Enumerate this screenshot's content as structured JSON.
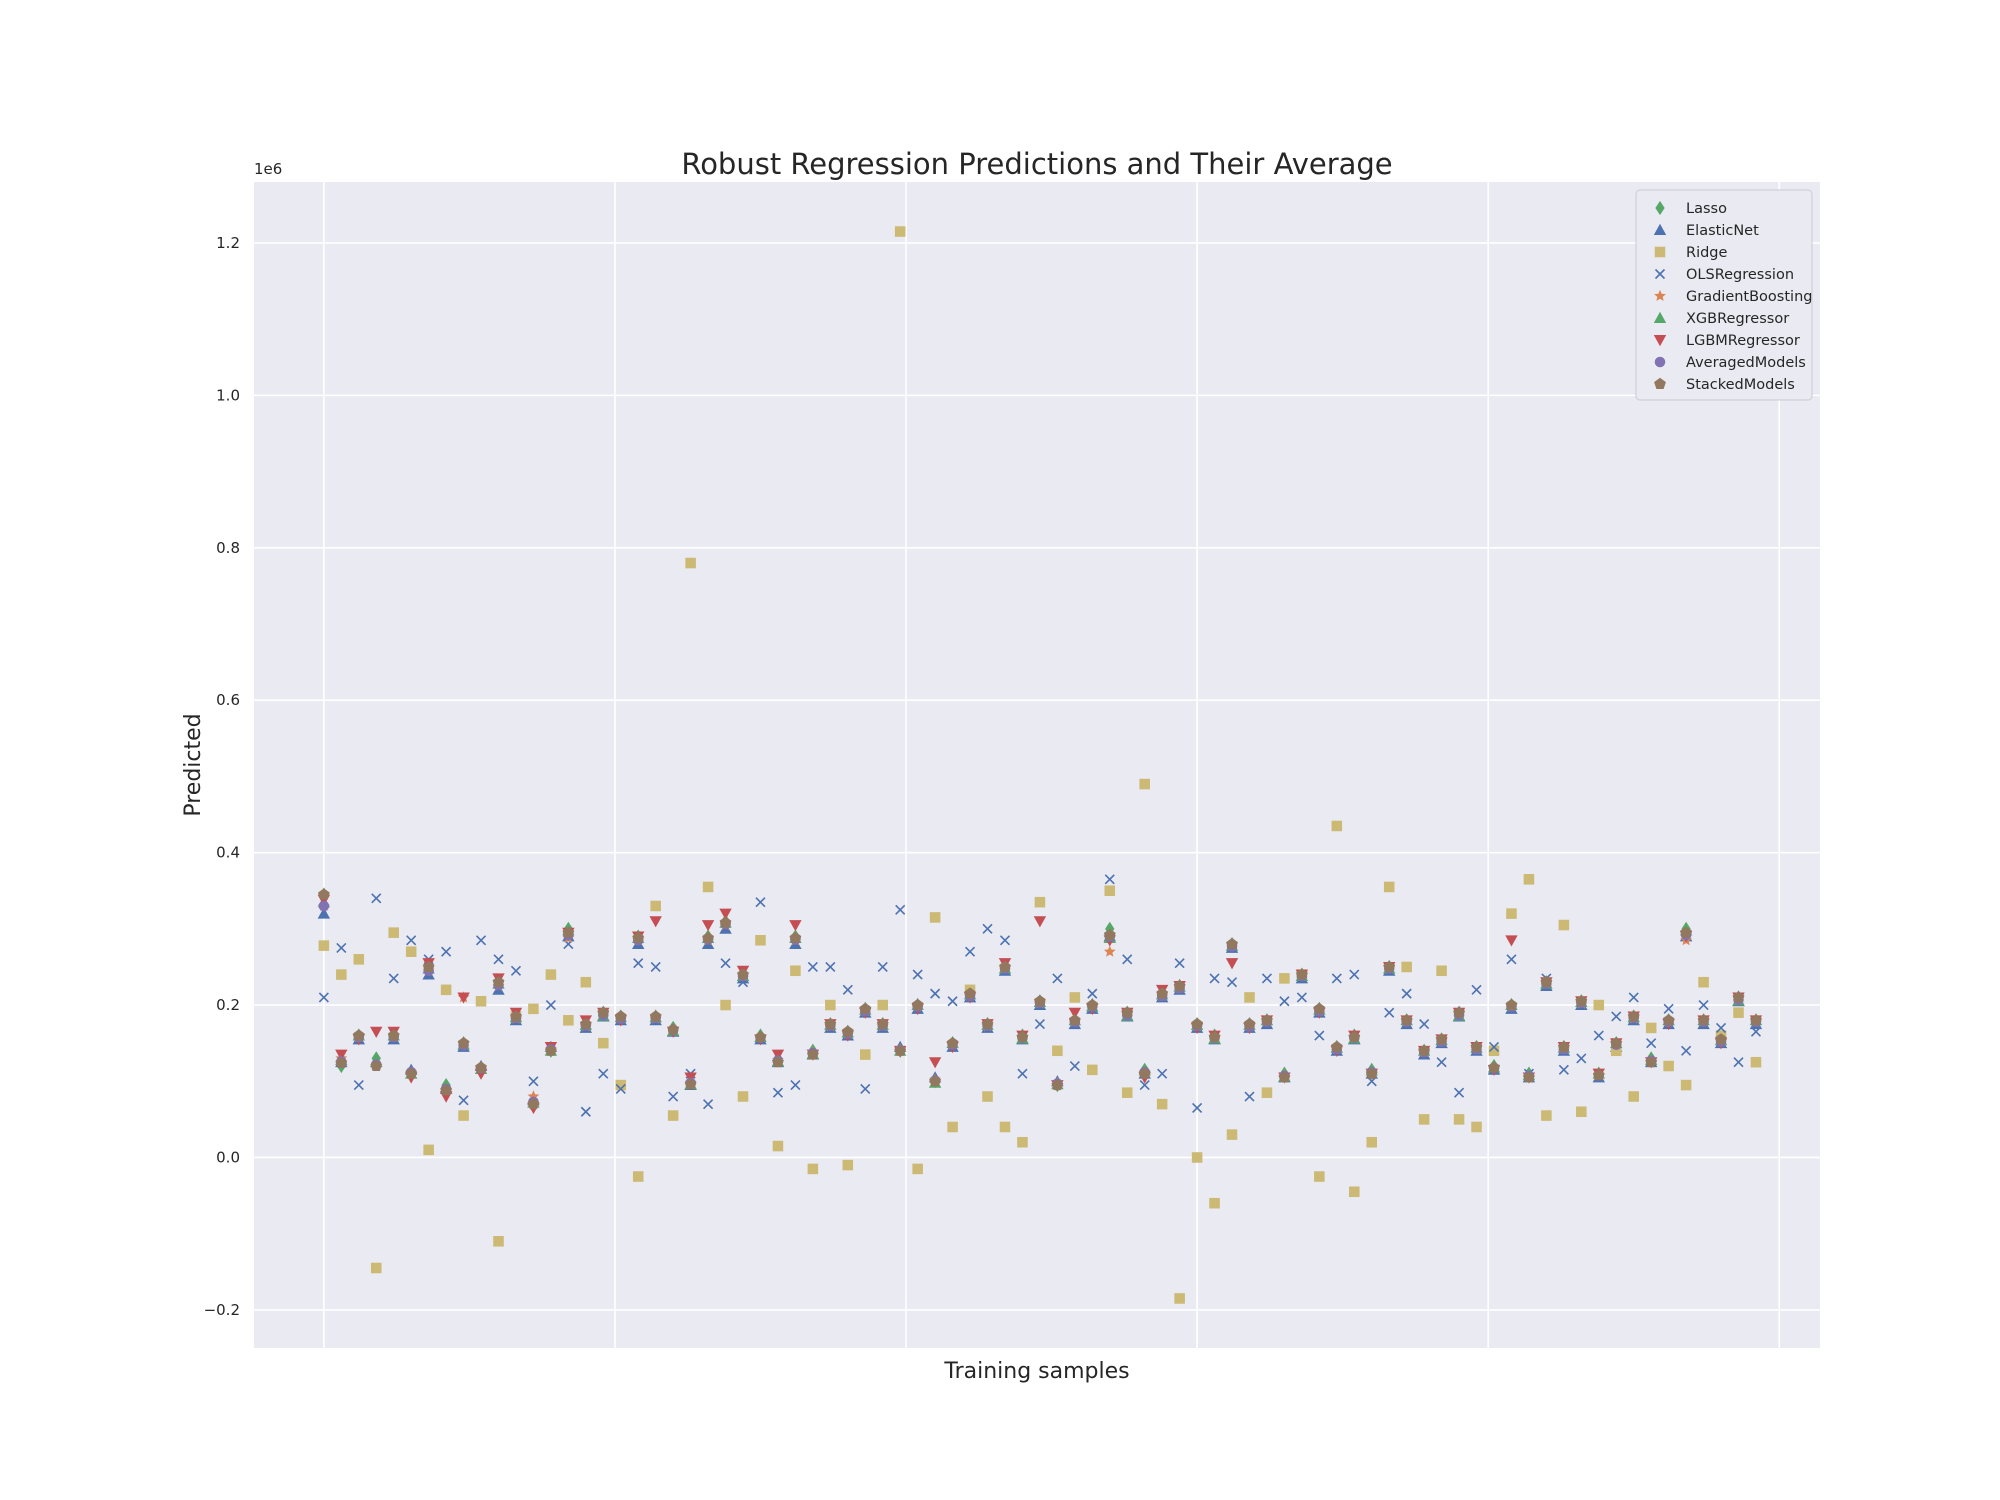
{
  "chart_data": {
    "type": "scatter",
    "title": "Robust Regression Predictions and Their Average",
    "xlabel": "Training samples",
    "ylabel": "Predicted",
    "y_offset_label": "1e6",
    "x_tick_labels_shown": false,
    "xlim": [
      -24,
      514
    ],
    "ylim": [
      -0.25,
      1.28
    ],
    "y_ticks": [
      -0.2,
      0.0,
      0.2,
      0.4,
      0.6,
      0.8,
      1.0,
      1.2
    ],
    "y_tick_labels": [
      "−0.2",
      "0.0",
      "0.2",
      "0.4",
      "0.6",
      "0.8",
      "1.0",
      "1.2"
    ],
    "x_grid": [
      0,
      100,
      200,
      300,
      400,
      500
    ],
    "grid": true,
    "legend_position": "top-right",
    "value_units": "millions of predicted price (1e6)",
    "x": [
      0,
      6,
      12,
      18,
      24,
      30,
      36,
      42,
      48,
      54,
      60,
      66,
      72,
      78,
      84,
      90,
      96,
      102,
      108,
      114,
      120,
      126,
      132,
      138,
      144,
      150,
      156,
      162,
      168,
      174,
      180,
      186,
      192,
      198,
      204,
      210,
      216,
      222,
      228,
      234,
      240,
      246,
      252,
      258,
      264,
      270,
      276,
      282,
      288,
      294,
      300,
      306,
      312,
      318,
      324,
      330,
      336,
      342,
      348,
      354,
      360,
      366,
      372,
      378,
      384,
      390,
      396,
      402,
      408,
      414,
      420,
      426,
      432,
      438,
      444,
      450,
      456,
      462,
      468,
      474,
      480,
      486,
      492
    ],
    "series": [
      {
        "name": "Lasso",
        "color": "#55a868",
        "marker": "diamond",
        "values": [
          0.345,
          0.12,
          0.16,
          0.13,
          0.162,
          0.11,
          0.25,
          0.095,
          0.15,
          0.115,
          0.23,
          0.185,
          0.07,
          0.14,
          0.3,
          0.175,
          0.19,
          0.185,
          0.29,
          0.185,
          0.17,
          0.1,
          0.29,
          0.31,
          0.24,
          0.16,
          0.13,
          0.29,
          0.14,
          0.175,
          0.165,
          0.195,
          0.175,
          0.14,
          0.2,
          0.1,
          0.15,
          0.215,
          0.175,
          0.25,
          0.16,
          0.205,
          0.095,
          0.18,
          0.2,
          0.3,
          0.19,
          0.115,
          0.215,
          0.225,
          0.175,
          0.16,
          0.28,
          0.175,
          0.18,
          0.11,
          0.24,
          0.195,
          0.145,
          0.16,
          0.115,
          0.25,
          0.18,
          0.14,
          0.155,
          0.19,
          0.145,
          0.12,
          0.2,
          0.11,
          0.23,
          0.145,
          0.205,
          0.11,
          0.15,
          0.185,
          0.13,
          0.18,
          0.3,
          0.18,
          0.155,
          0.21,
          0.18
        ]
      },
      {
        "name": "ElasticNet",
        "color": "#4c72b0",
        "marker": "triangle-up",
        "values": [
          0.32,
          0.125,
          0.155,
          0.125,
          0.155,
          0.115,
          0.24,
          0.09,
          0.145,
          0.12,
          0.22,
          0.18,
          0.075,
          0.145,
          0.29,
          0.17,
          0.185,
          0.18,
          0.28,
          0.18,
          0.165,
          0.095,
          0.28,
          0.3,
          0.235,
          0.155,
          0.125,
          0.28,
          0.135,
          0.17,
          0.16,
          0.19,
          0.17,
          0.145,
          0.195,
          0.105,
          0.145,
          0.21,
          0.17,
          0.245,
          0.155,
          0.2,
          0.1,
          0.175,
          0.195,
          0.29,
          0.185,
          0.11,
          0.21,
          0.22,
          0.17,
          0.155,
          0.275,
          0.17,
          0.175,
          0.105,
          0.235,
          0.19,
          0.14,
          0.155,
          0.11,
          0.245,
          0.175,
          0.135,
          0.15,
          0.185,
          0.14,
          0.115,
          0.195,
          0.105,
          0.225,
          0.14,
          0.2,
          0.105,
          0.145,
          0.18,
          0.125,
          0.175,
          0.29,
          0.175,
          0.15,
          0.205,
          0.175
        ]
      },
      {
        "name": "Ridge",
        "color": "#ccb974",
        "marker": "square",
        "values": [
          0.278,
          0.24,
          0.26,
          -0.145,
          0.295,
          0.27,
          0.01,
          0.22,
          0.055,
          0.205,
          -0.11,
          0.185,
          0.195,
          0.24,
          0.18,
          0.23,
          0.15,
          0.095,
          -0.025,
          0.33,
          0.055,
          0.78,
          0.355,
          0.2,
          0.08,
          0.285,
          0.015,
          0.245,
          -0.015,
          0.2,
          -0.01,
          0.135,
          0.2,
          1.215,
          -0.015,
          0.315,
          0.04,
          0.22,
          0.08,
          0.04,
          0.02,
          0.335,
          0.14,
          0.21,
          0.115,
          0.35,
          0.085,
          0.49,
          0.07,
          -0.185,
          0.0,
          -0.06,
          0.03,
          0.21,
          0.085,
          0.235,
          0.24,
          -0.025,
          0.435,
          -0.045,
          0.02,
          0.355,
          0.25,
          0.05,
          0.245,
          0.05,
          0.04,
          0.14,
          0.32,
          0.365,
          0.055,
          0.305,
          0.06,
          0.2,
          0.14,
          0.08,
          0.17,
          0.12,
          0.095,
          0.23,
          0.16,
          0.19,
          0.125
        ]
      },
      {
        "name": "OLSRegression",
        "color": "#4c72b0",
        "marker": "x",
        "values": [
          0.21,
          0.275,
          0.095,
          0.34,
          0.235,
          0.285,
          0.26,
          0.27,
          0.075,
          0.285,
          0.26,
          0.245,
          0.1,
          0.2,
          0.28,
          0.06,
          0.11,
          0.09,
          0.255,
          0.25,
          0.08,
          0.11,
          0.07,
          0.255,
          0.23,
          0.335,
          0.085,
          0.095,
          0.25,
          0.25,
          0.22,
          0.09,
          0.25,
          0.325,
          0.24,
          0.215,
          0.205,
          0.27,
          0.3,
          0.285,
          0.11,
          0.175,
          0.235,
          0.12,
          0.215,
          0.365,
          0.26,
          0.095,
          0.11,
          0.255,
          0.065,
          0.235,
          0.23,
          0.08,
          0.235,
          0.205,
          0.21,
          0.16,
          0.235,
          0.24,
          0.1,
          0.19,
          0.215,
          0.175,
          0.125,
          0.085,
          0.22,
          0.145,
          0.26,
          0.11,
          0.235,
          0.115,
          0.13,
          0.16,
          0.185,
          0.21,
          0.15,
          0.195,
          0.14,
          0.2,
          0.17,
          0.125,
          0.165
        ]
      },
      {
        "name": "GradientBoosting",
        "color": "#dd8452",
        "marker": "star",
        "values": [
          0.33,
          0.13,
          0.158,
          0.12,
          0.158,
          0.112,
          0.245,
          0.088,
          0.21,
          0.118,
          0.225,
          0.182,
          0.08,
          0.142,
          0.288,
          0.172,
          0.188,
          0.182,
          0.285,
          0.182,
          0.168,
          0.098,
          0.285,
          0.305,
          0.24,
          0.158,
          0.128,
          0.285,
          0.138,
          0.172,
          0.162,
          0.192,
          0.172,
          0.142,
          0.198,
          0.102,
          0.148,
          0.212,
          0.172,
          0.248,
          0.158,
          0.202,
          0.098,
          0.178,
          0.198,
          0.27,
          0.188,
          0.112,
          0.212,
          0.222,
          0.172,
          0.158,
          0.278,
          0.172,
          0.178,
          0.108,
          0.238,
          0.192,
          0.142,
          0.158,
          0.112,
          0.248,
          0.178,
          0.138,
          0.152,
          0.188,
          0.142,
          0.118,
          0.198,
          0.108,
          0.228,
          0.142,
          0.202,
          0.108,
          0.148,
          0.182,
          0.128,
          0.178,
          0.285,
          0.178,
          0.152,
          0.208,
          0.178
        ]
      },
      {
        "name": "XGBRegressor",
        "color": "#55a868",
        "marker": "triangle-up",
        "values": [
          0.335,
          0.128,
          0.16,
          0.125,
          0.16,
          0.11,
          0.248,
          0.092,
          0.148,
          0.116,
          0.228,
          0.184,
          0.072,
          0.14,
          0.298,
          0.174,
          0.186,
          0.184,
          0.288,
          0.184,
          0.166,
          0.096,
          0.288,
          0.308,
          0.238,
          0.158,
          0.126,
          0.288,
          0.136,
          0.174,
          0.164,
          0.194,
          0.174,
          0.14,
          0.2,
          0.098,
          0.15,
          0.214,
          0.174,
          0.248,
          0.156,
          0.204,
          0.096,
          0.18,
          0.198,
          0.288,
          0.186,
          0.114,
          0.214,
          0.224,
          0.174,
          0.156,
          0.278,
          0.174,
          0.18,
          0.106,
          0.238,
          0.194,
          0.144,
          0.156,
          0.114,
          0.248,
          0.18,
          0.14,
          0.154,
          0.186,
          0.144,
          0.118,
          0.2,
          0.108,
          0.228,
          0.144,
          0.204,
          0.11,
          0.15,
          0.184,
          0.128,
          0.18,
          0.298,
          0.18,
          0.154,
          0.206,
          0.18
        ]
      },
      {
        "name": "LGBMRegressor",
        "color": "#c44e52",
        "marker": "triangle-down",
        "values": [
          0.338,
          0.135,
          0.155,
          0.165,
          0.165,
          0.105,
          0.255,
          0.08,
          0.21,
          0.11,
          0.235,
          0.19,
          0.065,
          0.145,
          0.295,
          0.18,
          0.19,
          0.18,
          0.29,
          0.31,
          0.165,
          0.105,
          0.305,
          0.32,
          0.245,
          0.155,
          0.135,
          0.305,
          0.135,
          0.175,
          0.16,
          0.19,
          0.175,
          0.14,
          0.195,
          0.125,
          0.145,
          0.21,
          0.175,
          0.255,
          0.16,
          0.31,
          0.095,
          0.19,
          0.195,
          0.285,
          0.19,
          0.105,
          0.22,
          0.225,
          0.17,
          0.16,
          0.255,
          0.17,
          0.18,
          0.105,
          0.24,
          0.19,
          0.14,
          0.16,
          0.11,
          0.25,
          0.18,
          0.14,
          0.155,
          0.19,
          0.145,
          0.115,
          0.285,
          0.105,
          0.23,
          0.145,
          0.205,
          0.11,
          0.15,
          0.185,
          0.125,
          0.175,
          0.29,
          0.18,
          0.15,
          0.21,
          0.18
        ]
      },
      {
        "name": "AveragedModels",
        "color": "#8172b3",
        "marker": "circle",
        "values": [
          0.33,
          0.126,
          0.158,
          0.122,
          0.158,
          0.112,
          0.245,
          0.09,
          0.147,
          0.117,
          0.226,
          0.183,
          0.073,
          0.142,
          0.292,
          0.173,
          0.187,
          0.182,
          0.285,
          0.183,
          0.167,
          0.098,
          0.286,
          0.306,
          0.238,
          0.157,
          0.127,
          0.286,
          0.137,
          0.173,
          0.163,
          0.192,
          0.173,
          0.141,
          0.198,
          0.101,
          0.148,
          0.212,
          0.173,
          0.248,
          0.157,
          0.203,
          0.097,
          0.178,
          0.198,
          0.29,
          0.187,
          0.112,
          0.212,
          0.222,
          0.173,
          0.157,
          0.277,
          0.172,
          0.178,
          0.107,
          0.238,
          0.192,
          0.142,
          0.157,
          0.112,
          0.248,
          0.178,
          0.138,
          0.152,
          0.187,
          0.142,
          0.117,
          0.198,
          0.107,
          0.228,
          0.142,
          0.203,
          0.108,
          0.148,
          0.183,
          0.127,
          0.178,
          0.292,
          0.178,
          0.152,
          0.207,
          0.178
        ]
      },
      {
        "name": "StackedModels",
        "color": "#937860",
        "marker": "pentagon",
        "values": [
          0.345,
          0.124,
          0.16,
          0.12,
          0.16,
          0.11,
          0.25,
          0.088,
          0.15,
          0.118,
          0.23,
          0.185,
          0.07,
          0.14,
          0.295,
          0.175,
          0.19,
          0.185,
          0.288,
          0.185,
          0.168,
          0.096,
          0.288,
          0.308,
          0.24,
          0.158,
          0.125,
          0.288,
          0.135,
          0.175,
          0.165,
          0.195,
          0.175,
          0.14,
          0.2,
          0.1,
          0.15,
          0.215,
          0.175,
          0.25,
          0.158,
          0.205,
          0.095,
          0.18,
          0.2,
          0.292,
          0.19,
          0.11,
          0.215,
          0.225,
          0.175,
          0.158,
          0.28,
          0.175,
          0.18,
          0.105,
          0.24,
          0.195,
          0.145,
          0.158,
          0.11,
          0.25,
          0.18,
          0.14,
          0.155,
          0.19,
          0.145,
          0.118,
          0.2,
          0.105,
          0.23,
          0.145,
          0.205,
          0.108,
          0.15,
          0.185,
          0.125,
          0.18,
          0.295,
          0.18,
          0.155,
          0.21,
          0.18
        ]
      }
    ]
  }
}
